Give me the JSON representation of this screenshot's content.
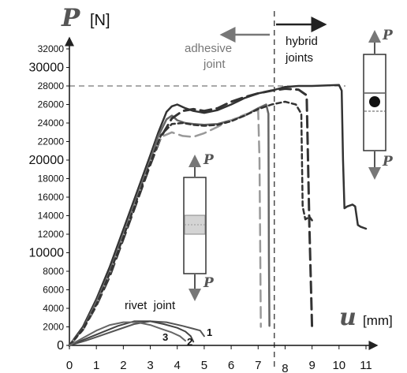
{
  "chart_data": {
    "type": "line",
    "ylabel_symbol": "P",
    "ylabel_unit": "[N]",
    "xlabel_symbol": "u",
    "xlabel_unit": "[mm]",
    "xlim": [
      0,
      11
    ],
    "ylim": [
      0,
      32000
    ],
    "x_ticks": [
      {
        "v": 0,
        "label": "0"
      },
      {
        "v": 1,
        "label": "1"
      },
      {
        "v": 2,
        "label": "2"
      },
      {
        "v": 3,
        "label": "3"
      },
      {
        "v": 4,
        "label": "4"
      },
      {
        "v": 5,
        "label": "5"
      },
      {
        "v": 6,
        "label": "6"
      },
      {
        "v": 7,
        "label": "7"
      },
      {
        "v": 8,
        "label": "8"
      },
      {
        "v": 9,
        "label": "9"
      },
      {
        "v": 10,
        "label": "10"
      },
      {
        "v": 11,
        "label": "11"
      }
    ],
    "y_ticks": [
      {
        "v": 0,
        "label": "0",
        "big": true
      },
      {
        "v": 2000,
        "label": "2000"
      },
      {
        "v": 4000,
        "label": "4000"
      },
      {
        "v": 6000,
        "label": "6000"
      },
      {
        "v": 8000,
        "label": "8000"
      },
      {
        "v": 10000,
        "label": "10000",
        "big": true
      },
      {
        "v": 12000,
        "label": "12000"
      },
      {
        "v": 14000,
        "label": "14000"
      },
      {
        "v": 16000,
        "label": "16000"
      },
      {
        "v": 18000,
        "label": "18000"
      },
      {
        "v": 20000,
        "label": "20000",
        "big": true
      },
      {
        "v": 22000,
        "label": "22000"
      },
      {
        "v": 24000,
        "label": "24000"
      },
      {
        "v": 26000,
        "label": "26000"
      },
      {
        "v": 28000,
        "label": "28000"
      },
      {
        "v": 30000,
        "label": "30000",
        "big": true
      },
      {
        "v": 32000,
        "label": "32000"
      }
    ],
    "reference_lines": {
      "y": 28000,
      "x_divider": 7.6
    },
    "annotations": {
      "adhesive_joint": [
        "adhesive",
        "joint"
      ],
      "hybrid_joints": [
        "hybrid",
        "joints"
      ],
      "rivet_joint": "rivet  joint",
      "curve_labels": [
        "1",
        "2",
        "3"
      ]
    },
    "series": [
      {
        "style": "solid",
        "color": "#333333",
        "width": 2.5,
        "x": [
          0,
          0.5,
          1,
          1.5,
          2,
          2.5,
          3,
          3.3,
          3.6,
          3.8,
          4,
          4.3,
          4.6,
          5,
          5.5,
          6,
          6.5,
          7,
          7.5,
          8,
          8.5,
          9,
          9.5,
          10,
          10.1,
          10.15,
          10.2,
          10.3,
          10.5,
          10.6,
          10.7,
          10.8,
          11
        ],
        "y": [
          0,
          2000,
          5000,
          8500,
          12500,
          16500,
          20500,
          23000,
          25200,
          25800,
          26000,
          25600,
          25300,
          25100,
          25400,
          26000,
          26700,
          27200,
          27500,
          27900,
          28000,
          28000,
          28050,
          28100,
          27500,
          20000,
          14800,
          15000,
          15200,
          15000,
          13000,
          12800,
          12600
        ]
      },
      {
        "style": "solid",
        "color": "#666666",
        "width": 2.5,
        "x": [
          0,
          0.5,
          1,
          1.5,
          2,
          2.5,
          3,
          3.3,
          3.6,
          3.8,
          4,
          4.3,
          4.6,
          5,
          5.5,
          6,
          6.5,
          7,
          7.3,
          7.38,
          7.4,
          7.42
        ],
        "y": [
          0,
          1800,
          4700,
          8000,
          12000,
          16000,
          20000,
          22600,
          24400,
          24800,
          24300,
          24000,
          23900,
          23800,
          23900,
          24300,
          24800,
          25600,
          26000,
          25000,
          10000,
          2100
        ]
      },
      {
        "style": "dashed",
        "color": "#333333",
        "width": 3,
        "x": [
          0,
          0.5,
          1,
          1.5,
          2,
          2.5,
          3,
          3.4,
          3.8,
          4.2,
          4.6,
          5,
          5.5,
          6,
          6.5,
          7,
          7.5,
          8,
          8.5,
          8.8,
          8.9,
          9.0
        ],
        "y": [
          0,
          1700,
          4300,
          7500,
          11500,
          15500,
          19500,
          22500,
          24500,
          25300,
          25500,
          25300,
          25600,
          26300,
          26800,
          27200,
          27500,
          27700,
          27600,
          27000,
          13000,
          2000
        ]
      },
      {
        "style": "dashed",
        "color": "#999999",
        "width": 2.5,
        "x": [
          0,
          0.5,
          1,
          1.5,
          2,
          2.5,
          3,
          3.4,
          3.8,
          4.2,
          4.6,
          5,
          5.5,
          6,
          6.5,
          7,
          7.05,
          7.1
        ],
        "y": [
          0,
          1700,
          4400,
          7800,
          11800,
          15800,
          19800,
          22500,
          23000,
          22600,
          22500,
          22900,
          23600,
          24300,
          24900,
          25400,
          20000,
          2000
        ]
      },
      {
        "style": "short-dash",
        "color": "#333333",
        "width": 2.5,
        "x": [
          0,
          0.5,
          1,
          1.5,
          2,
          2.5,
          3,
          3.4,
          3.8,
          4.2,
          4.6,
          5,
          5.5,
          6,
          6.5,
          7,
          7.5,
          8,
          8.4,
          8.6,
          8.65,
          8.75,
          8.9,
          9.0
        ],
        "y": [
          0,
          1700,
          4400,
          7800,
          11700,
          15700,
          19700,
          22700,
          23900,
          24000,
          23800,
          23700,
          23800,
          24200,
          24800,
          25500,
          26000,
          26300,
          26000,
          25000,
          15000,
          13600,
          13900,
          13500
        ]
      },
      {
        "style": "solid",
        "color": "#555555",
        "width": 2,
        "x": [
          0,
          0.6,
          1.2,
          1.8,
          2.4,
          3,
          3.6,
          4.2,
          4.6,
          4.85,
          5
        ],
        "y": [
          0,
          500,
          1100,
          1700,
          2300,
          2600,
          2500,
          2100,
          1800,
          1600,
          1000
        ]
      },
      {
        "style": "solid",
        "color": "#444444",
        "width": 2,
        "x": [
          0,
          0.6,
          1.2,
          1.8,
          2.4,
          3,
          3.5,
          4,
          4.3,
          4.5,
          4.6
        ],
        "y": [
          0,
          700,
          1400,
          2100,
          2600,
          2600,
          2300,
          1900,
          1500,
          1000,
          400
        ]
      },
      {
        "style": "solid",
        "color": "#666666",
        "width": 2,
        "x": [
          0,
          0.5,
          1,
          1.5,
          2,
          2.5,
          3,
          3.4,
          3.8,
          4.1,
          4.3
        ],
        "y": [
          0,
          800,
          1600,
          2200,
          2500,
          2500,
          2200,
          1800,
          1400,
          1000,
          500
        ]
      }
    ]
  }
}
